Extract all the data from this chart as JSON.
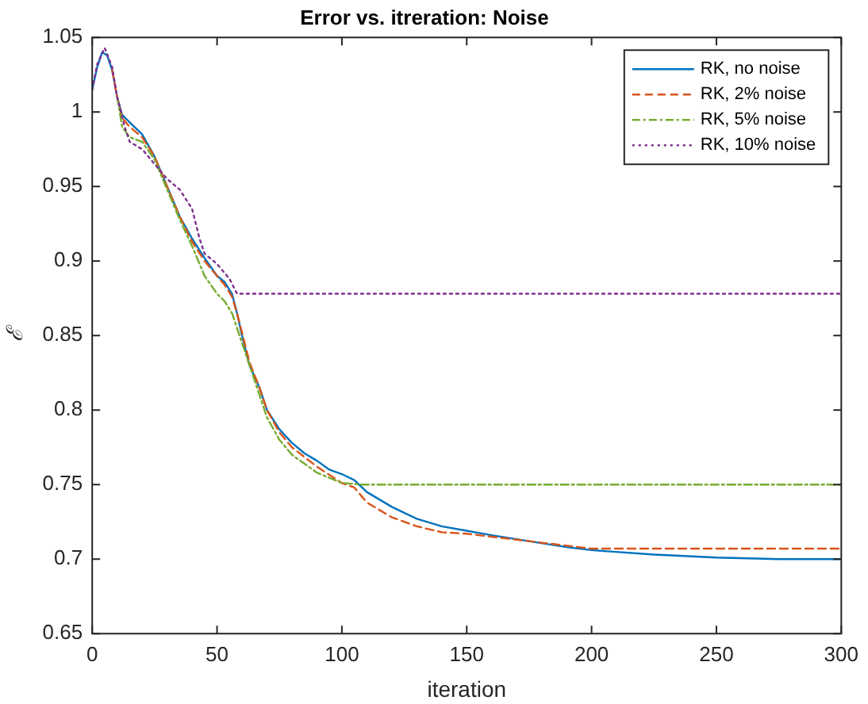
{
  "chart_data": {
    "type": "line",
    "title": "Error vs. itreration: Noise",
    "xlabel": "iteration",
    "ylabel": "ℰ",
    "xlim": [
      0,
      300
    ],
    "xticks": [
      0,
      50,
      100,
      150,
      200,
      250,
      300
    ],
    "ylim": [
      0.65,
      1.05
    ],
    "yticks": [
      0.65,
      0.7,
      0.75,
      0.8,
      0.85,
      0.9,
      0.95,
      1,
      1.05
    ],
    "grid": false,
    "legend": "top right",
    "marker": "none",
    "series": [
      {
        "name": "RK, no noise",
        "color": "#0072bd",
        "line_style": "solid",
        "x": [
          0,
          2,
          4,
          6,
          8,
          10,
          12,
          15,
          20,
          25,
          30,
          35,
          40,
          45,
          50,
          53,
          56,
          58,
          60,
          63,
          67,
          70,
          75,
          80,
          85,
          90,
          95,
          100,
          105,
          110,
          120,
          130,
          140,
          150,
          160,
          175,
          190,
          200,
          225,
          250,
          275,
          300
        ],
        "values": [
          1.015,
          1.03,
          1.04,
          1.038,
          1.028,
          1.01,
          0.998,
          0.993,
          0.985,
          0.97,
          0.95,
          0.93,
          0.915,
          0.902,
          0.89,
          0.886,
          0.878,
          0.865,
          0.85,
          0.83,
          0.815,
          0.8,
          0.787,
          0.778,
          0.771,
          0.766,
          0.76,
          0.757,
          0.753,
          0.745,
          0.735,
          0.727,
          0.722,
          0.719,
          0.716,
          0.712,
          0.708,
          0.706,
          0.703,
          0.701,
          0.7,
          0.7
        ]
      },
      {
        "name": "RK, 2% noise",
        "color": "#d95319",
        "line_style": "dashed",
        "x": [
          8,
          10,
          12,
          15,
          20,
          25,
          30,
          35,
          40,
          45,
          50,
          53,
          56,
          58,
          60,
          63,
          67,
          70,
          75,
          80,
          90,
          100,
          105,
          110,
          120,
          130,
          140,
          150,
          175,
          190,
          200,
          250,
          300
        ],
        "values": [
          1.028,
          1.01,
          0.996,
          0.99,
          0.983,
          0.97,
          0.95,
          0.93,
          0.913,
          0.9,
          0.89,
          0.884,
          0.876,
          0.865,
          0.852,
          0.832,
          0.815,
          0.8,
          0.785,
          0.775,
          0.762,
          0.751,
          0.748,
          0.738,
          0.728,
          0.722,
          0.718,
          0.717,
          0.712,
          0.709,
          0.707,
          0.707,
          0.707
        ]
      },
      {
        "name": "RK, 5% noise",
        "color": "#77ac30",
        "line_style": "dashdot",
        "x": [
          10,
          12,
          15,
          20,
          25,
          30,
          35,
          40,
          45,
          50,
          53,
          56,
          60,
          65,
          70,
          75,
          80,
          90,
          100,
          108,
          150,
          200,
          250,
          300
        ],
        "values": [
          1.01,
          0.99,
          0.983,
          0.98,
          0.968,
          0.948,
          0.928,
          0.91,
          0.89,
          0.878,
          0.873,
          0.865,
          0.845,
          0.82,
          0.795,
          0.78,
          0.77,
          0.758,
          0.751,
          0.75,
          0.75,
          0.75,
          0.75,
          0.75
        ]
      },
      {
        "name": "RK, 10% noise",
        "color": "#7e2f8e",
        "line_style": "dotted",
        "x": [
          0,
          2,
          5,
          8,
          10,
          13,
          15,
          20,
          25,
          30,
          35,
          40,
          43,
          45,
          50,
          55,
          58,
          100,
          150,
          200,
          250,
          300
        ],
        "values": [
          1.015,
          1.032,
          1.043,
          1.03,
          1.01,
          0.99,
          0.98,
          0.975,
          0.965,
          0.955,
          0.948,
          0.935,
          0.915,
          0.905,
          0.898,
          0.888,
          0.878,
          0.878,
          0.878,
          0.878,
          0.878,
          0.878
        ]
      }
    ]
  }
}
